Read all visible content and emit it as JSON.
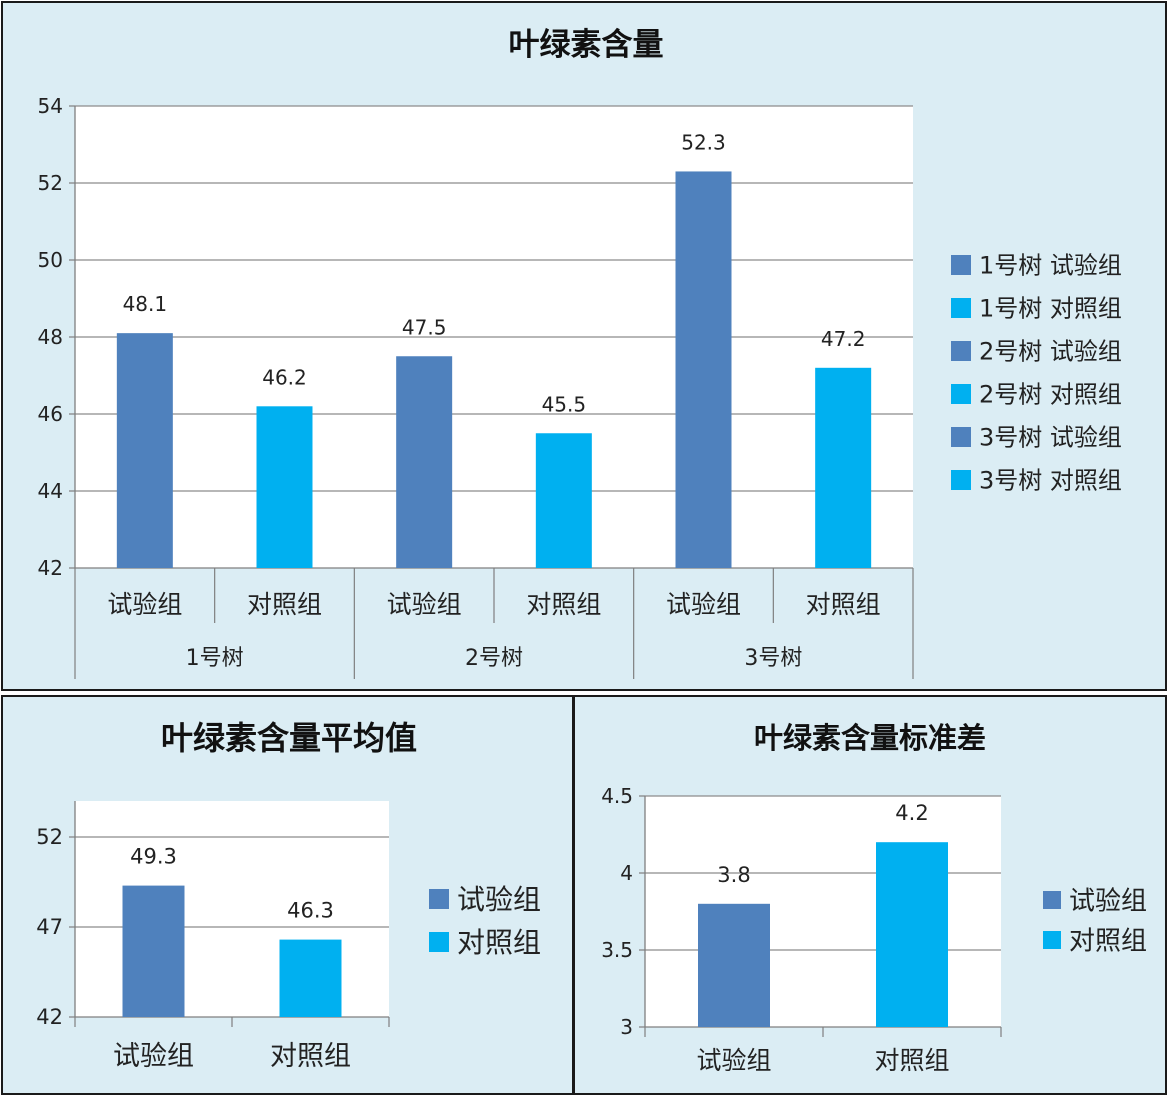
{
  "colors": {
    "test": "#4f81bd",
    "control": "#00b0f0"
  },
  "chart_data": [
    {
      "type": "bar",
      "title": "叶绿素含量",
      "groups": [
        {
          "label": "1号树",
          "categories": [
            "试验组",
            "对照组"
          ],
          "values": [
            48.1,
            46.2
          ]
        },
        {
          "label": "2号树",
          "categories": [
            "试验组",
            "对照组"
          ],
          "values": [
            47.5,
            45.5
          ]
        },
        {
          "label": "3号树",
          "categories": [
            "试验组",
            "对照组"
          ],
          "values": [
            52.3,
            47.2
          ]
        }
      ],
      "data_labels": [
        "48.1",
        "46.2",
        "47.5",
        "45.5",
        "52.3",
        "47.2"
      ],
      "ylim": [
        42,
        54
      ],
      "yticks": [
        "42",
        "44",
        "46",
        "48",
        "50",
        "52",
        "54"
      ],
      "legend": [
        "1号树 试验组",
        "1号树 对照组",
        "2号树 试验组",
        "2号树 对照组",
        "3号树 试验组",
        "3号树 对照组"
      ],
      "legend_position": "right",
      "grid": true
    },
    {
      "type": "bar",
      "title": "叶绿素含量平均值",
      "categories": [
        "试验组",
        "对照组"
      ],
      "values": [
        49.3,
        46.3
      ],
      "data_labels": [
        "49.3",
        "46.3"
      ],
      "ylim": [
        42,
        54
      ],
      "yticks": [
        "42",
        "47",
        "52"
      ],
      "legend": [
        "试验组",
        "对照组"
      ],
      "legend_position": "right",
      "grid": true
    },
    {
      "type": "bar",
      "title": "叶绿素含量标准差",
      "categories": [
        "试验组",
        "对照组"
      ],
      "values": [
        3.8,
        4.2
      ],
      "data_labels": [
        "3.8",
        "4.2"
      ],
      "ylim": [
        3,
        4.5
      ],
      "yticks": [
        "3",
        "3.5",
        "4",
        "4.5"
      ],
      "legend": [
        "试验组",
        "对照组"
      ],
      "legend_position": "right",
      "grid": true
    }
  ]
}
